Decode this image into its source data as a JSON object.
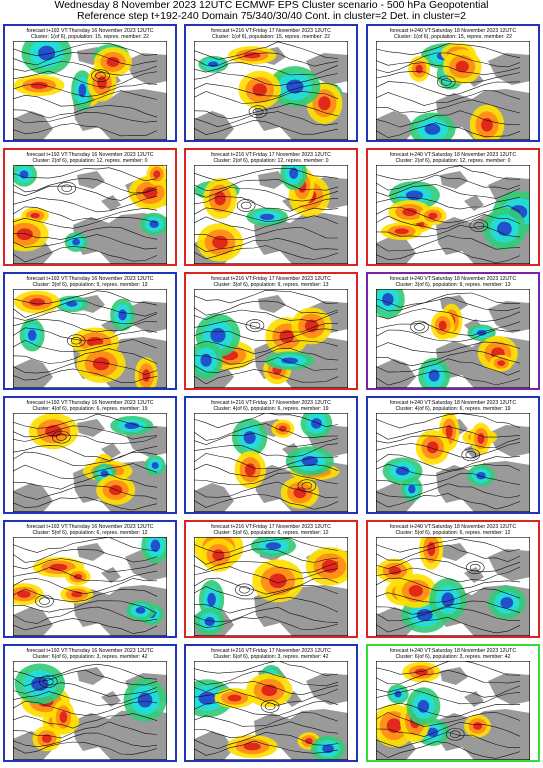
{
  "header": {
    "line1": "Wednesday 8 November 2023 12UTC ECMWF EPS Cluster scenario - 500 hPa Geopotential",
    "line2": "Reference step t+192-240 Domain 75/340/30/40 Cont. in cluster=2 Det. in cluster=2"
  },
  "columns": [
    "forecast t+192 VT:Thursday 16 November 2023 12UTC",
    "forecast t+216 VT:Friday 17 November 2023 12UTC",
    "forecast t+240 VT:Saturday 18 November 2023 12UTC"
  ],
  "clusters": [
    {
      "label": "Cluster: 1(of 6), population: 15, repres. member: 22"
    },
    {
      "label": "Cluster: 2(of 6), population: 12, repres. member: 0"
    },
    {
      "label": "Cluster: 3(of 6), population: 9, repres. member: 13"
    },
    {
      "label": "Cluster: 4(of 6), population: 6, repres. member: 19"
    },
    {
      "label": "Cluster: 5(of 6), population: 6, repres. member: 12"
    },
    {
      "label": "Cluster: 6(of 6), population: 3, repres. member: 42"
    }
  ],
  "frame_colors": [
    [
      "#2233bb",
      "#2233bb",
      "#2233bb"
    ],
    [
      "#dd2222",
      "#dd2222",
      "#dd2222"
    ],
    [
      "#2233bb",
      "#dd2222",
      "#7722aa"
    ],
    [
      "#2233bb",
      "#2233bb",
      "#2233bb"
    ],
    [
      "#2233bb",
      "#dd2222",
      "#dd2222"
    ],
    [
      "#2233bb",
      "#2233bb",
      "#33dd33"
    ]
  ],
  "palette": {
    "positive_strong": "#e0201a",
    "positive_mid": "#ff8a1a",
    "positive_weak": "#ffe000",
    "negative_weak": "#33cc77",
    "negative_mid": "#22dddd",
    "negative_strong": "#2244cc",
    "land": "#9a9a9a",
    "sea": "#ffffff"
  }
}
